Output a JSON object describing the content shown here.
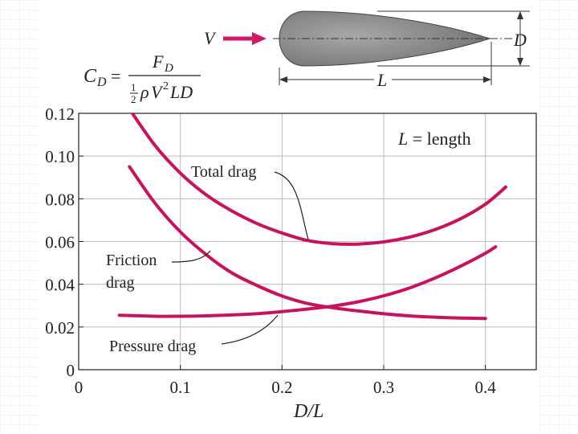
{
  "chart_data": {
    "type": "line",
    "title": "",
    "xlabel": "D/L",
    "ylabel": "",
    "xlim": [
      0,
      0.45
    ],
    "ylim": [
      0,
      0.12
    ],
    "x_ticks": [
      "0",
      "0.1",
      "0.2",
      "0.3",
      "0.4"
    ],
    "y_ticks": [
      "0",
      "0.02",
      "0.04",
      "0.06",
      "0.08",
      "0.10",
      "0.12"
    ],
    "grid": true,
    "series": [
      {
        "name": "Total drag",
        "x": [
          0.05,
          0.075,
          0.1,
          0.125,
          0.15,
          0.175,
          0.2,
          0.225,
          0.25,
          0.275,
          0.3,
          0.325,
          0.35,
          0.375,
          0.4,
          0.42
        ],
        "y": [
          0.122,
          0.105,
          0.092,
          0.082,
          0.0745,
          0.0685,
          0.064,
          0.0605,
          0.059,
          0.0588,
          0.0598,
          0.062,
          0.0655,
          0.0705,
          0.0775,
          0.0855
        ]
      },
      {
        "name": "Friction drag",
        "x": [
          0.05,
          0.075,
          0.1,
          0.125,
          0.15,
          0.175,
          0.2,
          0.225,
          0.25,
          0.275,
          0.3,
          0.325,
          0.35,
          0.375,
          0.4
        ],
        "y": [
          0.095,
          0.078,
          0.0645,
          0.054,
          0.0455,
          0.0395,
          0.0345,
          0.031,
          0.029,
          0.0275,
          0.0262,
          0.0252,
          0.0246,
          0.0242,
          0.024
        ]
      },
      {
        "name": "Pressure drag",
        "x": [
          0.04,
          0.075,
          0.1,
          0.125,
          0.15,
          0.175,
          0.2,
          0.225,
          0.25,
          0.275,
          0.3,
          0.325,
          0.35,
          0.375,
          0.4,
          0.41
        ],
        "y": [
          0.0255,
          0.025,
          0.025,
          0.0252,
          0.0256,
          0.0262,
          0.0272,
          0.0284,
          0.0298,
          0.0318,
          0.0346,
          0.0382,
          0.0428,
          0.0483,
          0.0545,
          0.0575
        ]
      }
    ],
    "annotations": {
      "total_label": "Total drag",
      "friction_label_1": "Friction",
      "friction_label_2": "drag",
      "pressure_label": "Pressure drag",
      "length_note_var": "L",
      "length_note_rest": " = length"
    },
    "equation": {
      "lhs_main": "C",
      "lhs_sub": "D",
      "equals": "=",
      "num_main": "F",
      "num_sub": "D",
      "den_frac_num": "1",
      "den_frac_den": "2",
      "den_rho": "ρ",
      "den_v": "V",
      "den_exp": "2",
      "den_rest": "LD"
    },
    "diagram": {
      "velocity": "V",
      "diameter": "D",
      "length": "L"
    },
    "colors": {
      "curve": "#c8125c",
      "arrow": "#d11a6a",
      "body": "#8a8a8a",
      "grid": "#bdbdbd",
      "axis": "#222222"
    }
  }
}
